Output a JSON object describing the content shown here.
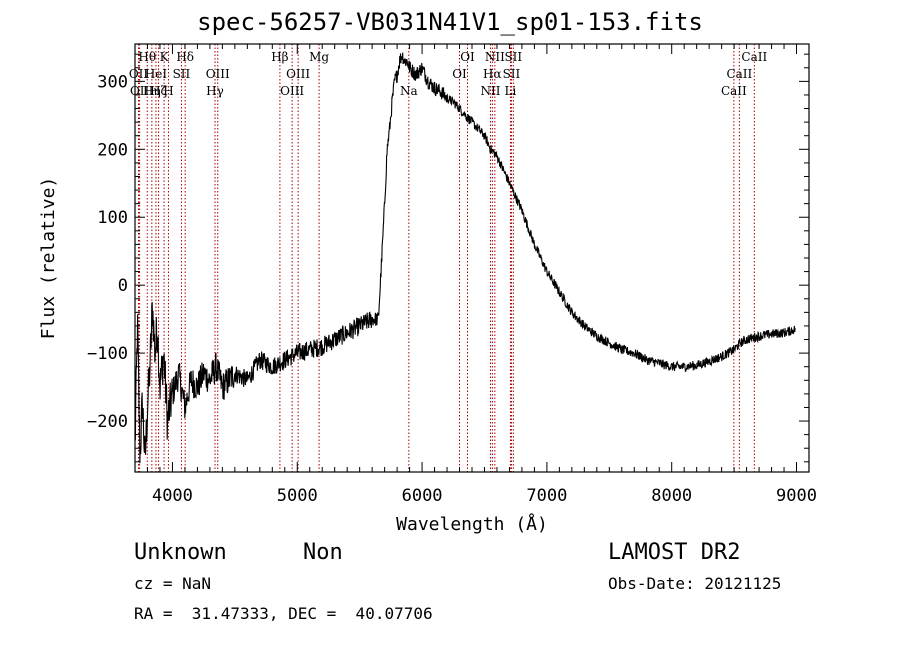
{
  "chart_data": {
    "type": "line",
    "title": "spec-56257-VB031N41V1_sp01-153.fits",
    "xlabel": "Wavelength (Å)",
    "ylabel": "Flux (relative)",
    "xlim": [
      3700,
      9100
    ],
    "ylim": [
      -275,
      355
    ],
    "xticks": [
      4000,
      5000,
      6000,
      7000,
      8000,
      9000
    ],
    "yticks": [
      -200,
      -100,
      0,
      100,
      200,
      300
    ],
    "line_color": "#000000",
    "marker_color": "#aa0000",
    "series": [
      {
        "x": [
          3700,
          3720,
          3740,
          3760,
          3780,
          3800,
          3820,
          3840,
          3860,
          3880,
          3900,
          3930,
          3960,
          4000,
          4050,
          4100,
          4150,
          4200,
          4250,
          4300,
          4350,
          4400,
          4500,
          4600,
          4700,
          4800,
          4900,
          5000,
          5100,
          5200,
          5300,
          5400,
          5500,
          5600,
          5650,
          5680,
          5700,
          5720,
          5740,
          5760,
          5780,
          5800,
          5820,
          5840,
          5860,
          5880,
          5900,
          5950,
          6000,
          6050,
          6100,
          6150,
          6200,
          6250,
          6300,
          6350,
          6400,
          6450,
          6500,
          6550,
          6600,
          6650,
          6700,
          6750,
          6800,
          6900,
          7000,
          7100,
          7200,
          7300,
          7400,
          7500,
          7600,
          7700,
          7800,
          7900,
          8000,
          8100,
          8200,
          8300,
          8400,
          8500,
          8550,
          8600,
          8700,
          8800,
          8900,
          8990
        ],
        "y": [
          -240,
          -60,
          -250,
          -170,
          -260,
          -180,
          -120,
          -30,
          -100,
          -60,
          -150,
          -100,
          -200,
          -160,
          -130,
          -180,
          -140,
          -150,
          -130,
          -140,
          -120,
          -150,
          -130,
          -140,
          -110,
          -120,
          -110,
          -100,
          -95,
          -90,
          -80,
          -70,
          -60,
          -50,
          -50,
          50,
          120,
          200,
          230,
          270,
          300,
          310,
          330,
          340,
          330,
          330,
          320,
          310,
          320,
          300,
          290,
          285,
          275,
          270,
          260,
          250,
          240,
          230,
          220,
          200,
          190,
          170,
          150,
          130,
          110,
          60,
          20,
          -10,
          -40,
          -60,
          -75,
          -85,
          -95,
          -100,
          -110,
          -115,
          -120,
          -120,
          -118,
          -112,
          -105,
          -95,
          -85,
          -80,
          -75,
          -72,
          -70,
          -65
        ]
      }
    ],
    "lines": [
      {
        "wl": 3728,
        "label": "OII",
        "row": 2
      },
      {
        "wl": 3737,
        "label": "OII",
        "row": 3
      },
      {
        "wl": 3798,
        "label": "Hθ",
        "row": 1
      },
      {
        "wl": 3835,
        "label": "Hη",
        "row": 3
      },
      {
        "wl": 3868,
        "label": "HeI",
        "row": 2
      },
      {
        "wl": 3889,
        "label": "Hζ",
        "row": 3
      },
      {
        "wl": 3933,
        "label": "K",
        "row": 1
      },
      {
        "wl": 3968,
        "label": "H",
        "row": 3
      },
      {
        "wl": 4072,
        "label": "SII",
        "row": 2
      },
      {
        "wl": 4102,
        "label": "Hδ",
        "row": 1
      },
      {
        "wl": 4341,
        "label": "Hγ",
        "row": 3
      },
      {
        "wl": 4363,
        "label": "OIII",
        "row": 2
      },
      {
        "wl": 4861,
        "label": "Hβ",
        "row": 1
      },
      {
        "wl": 4959,
        "label": "OIII",
        "row": 3
      },
      {
        "wl": 5007,
        "label": "OIII",
        "row": 2
      },
      {
        "wl": 5175,
        "label": "Mg",
        "row": 1
      },
      {
        "wl": 5894,
        "label": "Na",
        "row": 3
      },
      {
        "wl": 6300,
        "label": "OI",
        "row": 2
      },
      {
        "wl": 6364,
        "label": "OI",
        "row": 1
      },
      {
        "wl": 6548,
        "label": "NII",
        "row": 3
      },
      {
        "wl": 6563,
        "label": "Hα",
        "row": 2
      },
      {
        "wl": 6583,
        "label": "NII",
        "row": 1
      },
      {
        "wl": 6708,
        "label": "Li",
        "row": 3
      },
      {
        "wl": 6716,
        "label": "SII",
        "row": 2
      },
      {
        "wl": 6731,
        "label": "SII",
        "row": 1
      },
      {
        "wl": 8498,
        "label": "CaII",
        "row": 3
      },
      {
        "wl": 8542,
        "label": "CaII",
        "row": 2
      },
      {
        "wl": 8662,
        "label": "CaII",
        "row": 1
      }
    ]
  },
  "info": {
    "class_label": "Unknown",
    "subclass_label": "Non",
    "survey": "LAMOST DR2",
    "cz": "cz = NaN",
    "obs_date": "Obs-Date: 20121125",
    "coords": "RA =  31.47333, DEC =  40.07706"
  }
}
